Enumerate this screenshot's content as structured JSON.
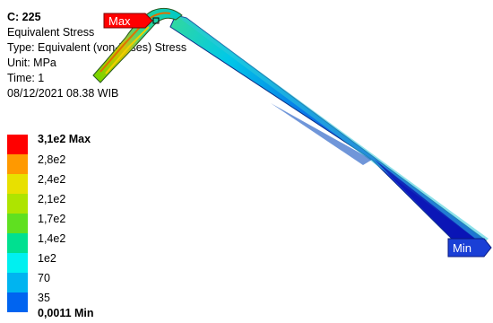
{
  "header": {
    "title": "C: 225",
    "lines": [
      "Equivalent Stress",
      "Type: Equivalent (von-Mises) Stress",
      "Unit: MPa",
      "Time: 1",
      "08/12/2021 08.38 WIB"
    ]
  },
  "legend": {
    "entries": [
      {
        "label": "3,1e2 Max",
        "color": "#ff0000",
        "bold": true
      },
      {
        "label": "2,8e2",
        "color": "#ff9900"
      },
      {
        "label": "2,4e2",
        "color": "#e8e000"
      },
      {
        "label": "2,1e2",
        "color": "#aee400"
      },
      {
        "label": "1,7e2",
        "color": "#5fe020"
      },
      {
        "label": "1,4e2",
        "color": "#00e090"
      },
      {
        "label": "1e2",
        "color": "#00f0f0"
      },
      {
        "label": "70",
        "color": "#00b4f0"
      },
      {
        "label": "35",
        "color": "#0064f0"
      }
    ],
    "min_label": "0,0011 Min",
    "min_color": "#0000ff"
  },
  "probes": {
    "max_label": "Max",
    "max_color": "#ff0000",
    "min_label": "Min",
    "min_color": "#1a3fd6"
  }
}
